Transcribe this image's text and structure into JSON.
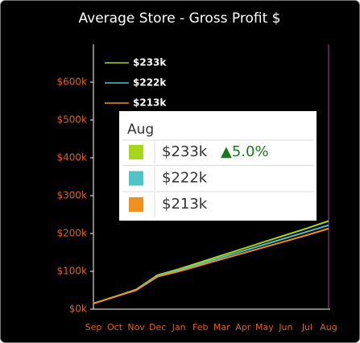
{
  "chart_data": {
    "type": "line",
    "title": "Average Store - Gross Profit $",
    "categories": [
      "Sep",
      "Oct",
      "Nov",
      "Dec",
      "Jan",
      "Feb",
      "Mar",
      "Apr",
      "May",
      "Jun",
      "Jul",
      "Aug"
    ],
    "series": [
      {
        "name": "$233k",
        "color": "#a6d71c",
        "values": [
          15000,
          33000,
          52000,
          90000,
          106000,
          124000,
          142000,
          160000,
          178000,
          196000,
          214000,
          233000
        ]
      },
      {
        "name": "$222k",
        "color": "#4fc3c8",
        "values": [
          15000,
          33000,
          51000,
          88000,
          103000,
          120000,
          137000,
          154000,
          171000,
          188000,
          205000,
          222000
        ]
      },
      {
        "name": "$213k",
        "color": "#f0901e",
        "values": [
          15000,
          33000,
          50000,
          86000,
          100000,
          116000,
          132000,
          148000,
          164000,
          180000,
          196000,
          213000
        ]
      }
    ],
    "ylim": [
      0,
      700000
    ],
    "yticks": [
      {
        "value": 0,
        "label": "$0k"
      },
      {
        "value": 100000,
        "label": "$100k"
      },
      {
        "value": 200000,
        "label": "$200k"
      },
      {
        "value": 300000,
        "label": "$300k"
      },
      {
        "value": 400000,
        "label": "$400k"
      },
      {
        "value": 500000,
        "label": "$500k"
      },
      {
        "value": 600000,
        "label": "$600k"
      }
    ],
    "tooltip_change": "▲5.0%"
  }
}
